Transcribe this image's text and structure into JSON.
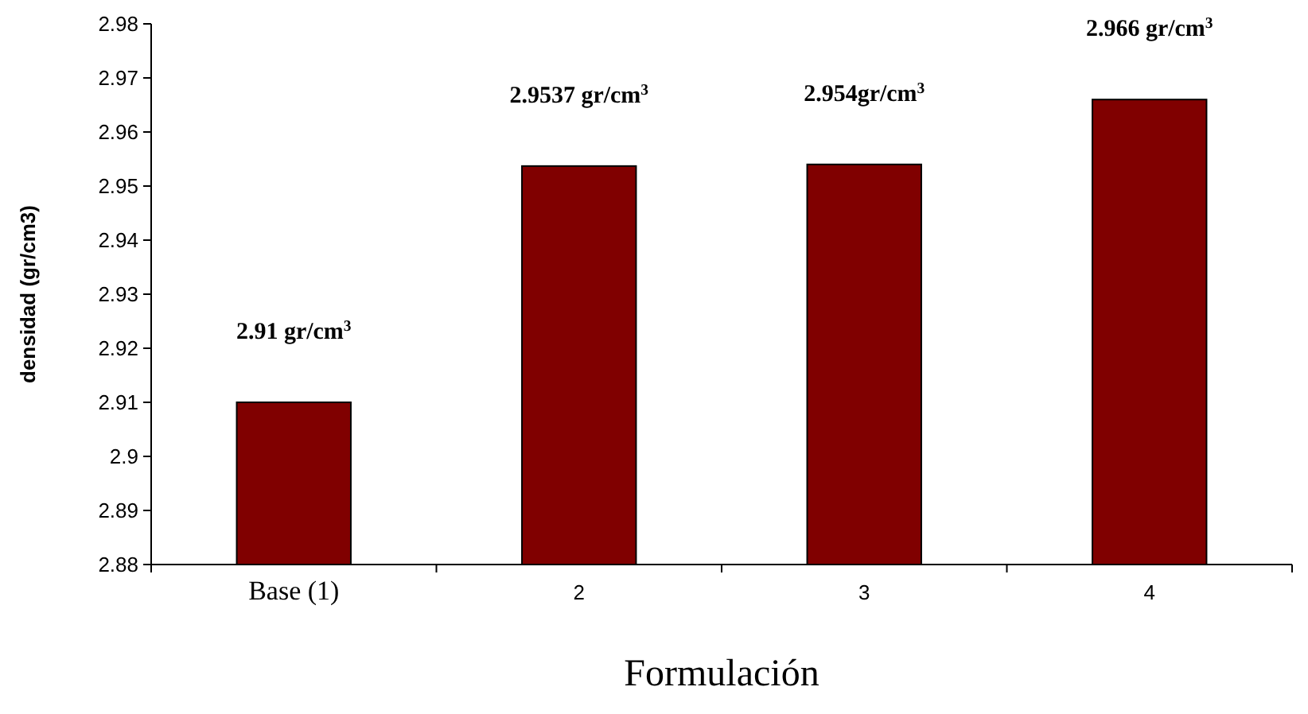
{
  "chart_data": {
    "type": "bar",
    "xlabel": "Formulación",
    "ylabel": "densidad (gr/cm3)",
    "categories": [
      "Base (1)",
      "2",
      "3",
      "4"
    ],
    "values": [
      2.91,
      2.9537,
      2.954,
      2.966
    ],
    "color": "#800000",
    "value_labels": [
      "2.91 gr/cm$^{3}$",
      "2.9537 gr/cm$^{3}$",
      "2.954gr/cm$^{3}$",
      "2.966 gr/cm$^{3}$"
    ],
    "ylim": [
      2.88,
      2.98
    ],
    "yticks": [
      2.88,
      2.89,
      2.9,
      2.91,
      2.92,
      2.93,
      2.94,
      2.95,
      2.96,
      2.97,
      2.98
    ],
    "grid": false
  }
}
